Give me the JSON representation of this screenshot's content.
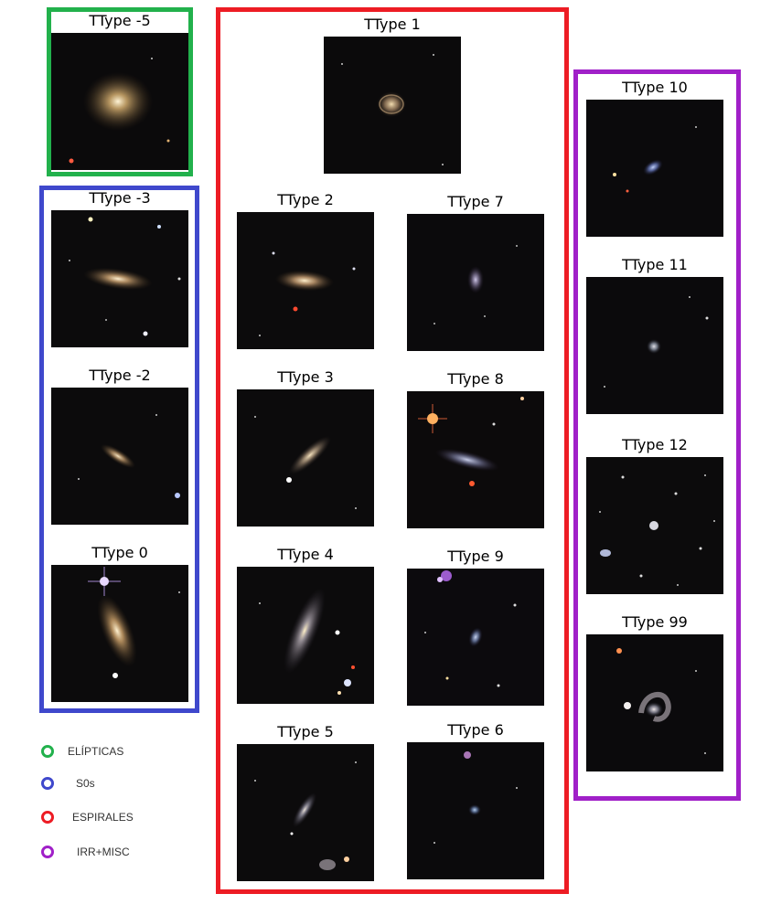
{
  "groups": {
    "elipticas": {
      "color": "#22b14c"
    },
    "s0s": {
      "color": "#3f48cc"
    },
    "espirales": {
      "color": "#ed1c24"
    },
    "irr_misc": {
      "color": "#a020c8"
    }
  },
  "panels": {
    "t_m5": "TType -5",
    "t_m3": "TType -3",
    "t_m2": "TType -2",
    "t_0": "TType 0",
    "t_1": "TType 1",
    "t_2": "TType 2",
    "t_3": "TType 3",
    "t_4": "TType 4",
    "t_5": "TType 5",
    "t_6": "TType 6",
    "t_7": "TType 7",
    "t_8": "TType 8",
    "t_9": "TType 9",
    "t_10": "TType 10",
    "t_11": "TType 11",
    "t_12": "TType 12",
    "t_99": "TType 99"
  },
  "legend": [
    {
      "label": "ELÍPTICAS",
      "color": "#22b14c"
    },
    {
      "label": "S0s",
      "color": "#3f48cc"
    },
    {
      "label": "ESPIRALES",
      "color": "#ed1c24"
    },
    {
      "label": "IRR+MISC",
      "color": "#a020c8"
    }
  ]
}
